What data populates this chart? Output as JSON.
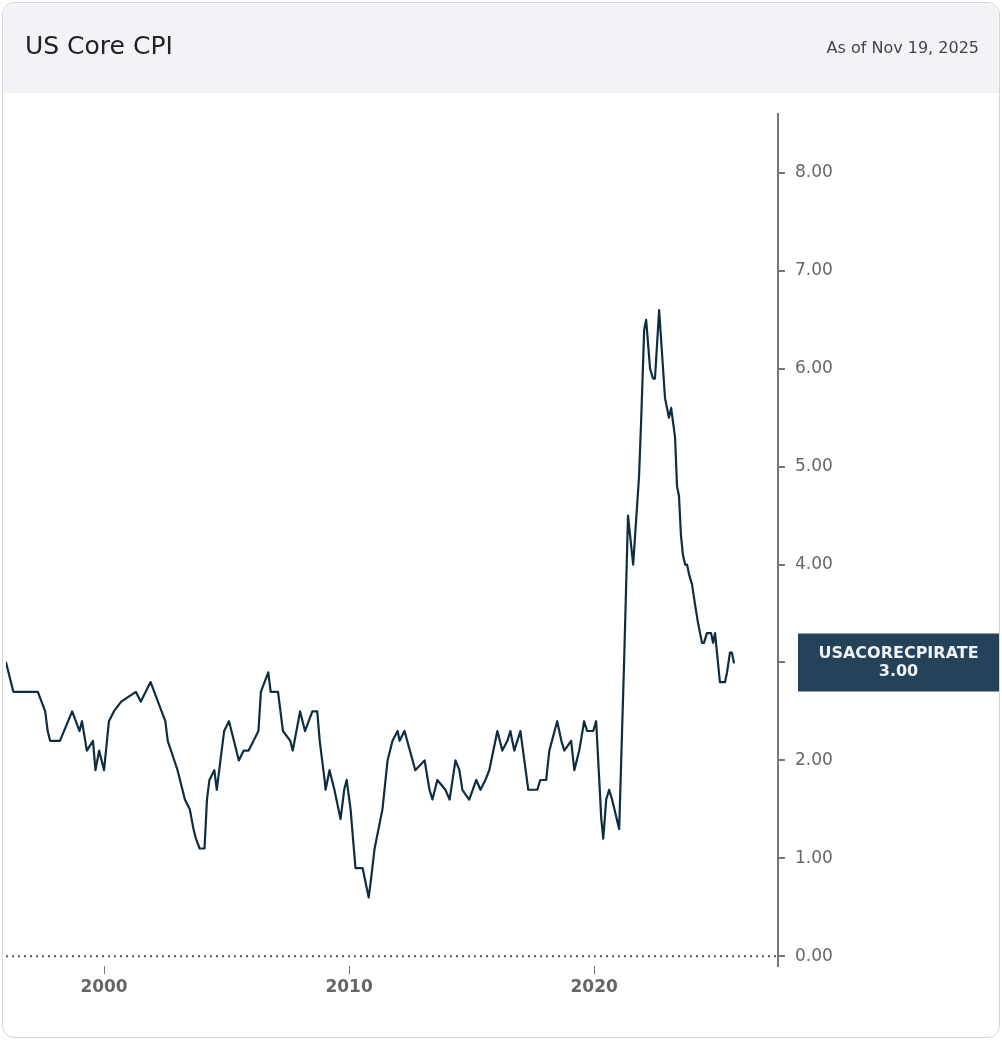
{
  "chart_data": {
    "type": "line",
    "title": "US Core CPI",
    "subtitle": "As of Nov 19, 2025",
    "series": [
      {
        "color": "#0f2d40",
        "x": [
          1996.0,
          1996.3,
          1997.3,
          1997.6,
          1997.7,
          1997.8,
          1998.2,
          1998.7,
          1999.0,
          1999.1,
          1999.3,
          1999.55,
          1999.65,
          1999.8,
          2000.0,
          2000.2,
          2000.4,
          2000.7,
          2001.3,
          2001.5,
          2001.7,
          2001.9,
          2002.2,
          2002.5,
          2002.6,
          2003.0,
          2003.3,
          2003.5,
          2003.65,
          2003.75,
          2003.9,
          2004.1,
          2004.2,
          2004.3,
          2004.5,
          2004.6,
          2004.8,
          2004.9,
          2005.1,
          2005.3,
          2005.5,
          2005.7,
          2005.9,
          2006.3,
          2006.4,
          2006.7,
          2006.8,
          2007.1,
          2007.3,
          2007.6,
          2007.7,
          2008.0,
          2008.2,
          2008.5,
          2008.7,
          2008.8,
          2009.0,
          2009.04,
          2009.2,
          2009.4,
          2009.65,
          2009.8,
          2009.9,
          2010.06,
          2010.26,
          2010.55,
          2010.8,
          2010.9,
          2011.04,
          2011.36,
          2011.57,
          2011.77,
          2011.98,
          2012.06,
          2012.26,
          2012.59,
          2012.7,
          2013.08,
          2013.28,
          2013.4,
          2013.6,
          2013.93,
          2014.1,
          2014.34,
          2014.5,
          2014.62,
          2014.9,
          2015.19,
          2015.36,
          2015.56,
          2015.72,
          2016.05,
          2016.25,
          2016.46,
          2016.58,
          2016.74,
          2016.99,
          2017.15,
          2017.31,
          2017.68,
          2017.8,
          2018.04,
          2018.17,
          2018.49,
          2018.66,
          2018.78,
          2019.06,
          2019.19,
          2019.39,
          2019.59,
          2019.71,
          2019.96,
          2020.08,
          2020.29,
          2020.37,
          2020.49,
          2020.61,
          2020.73,
          2021.02,
          2021.22,
          2021.38,
          2021.59,
          2021.75,
          2021.83,
          2021.92,
          2022.04,
          2022.12,
          2022.28,
          2022.4,
          2022.48,
          2022.65,
          2022.81,
          2022.89,
          2023.05,
          2023.14,
          2023.3,
          2023.38,
          2023.46,
          2023.54,
          2023.62,
          2023.71,
          2023.79,
          2023.87,
          2023.99,
          2024.11,
          2024.24,
          2024.32,
          2024.4,
          2024.48,
          2024.6,
          2024.77,
          2024.85,
          2024.93,
          2025.01,
          2025.13,
          2025.34,
          2025.42,
          2025.54,
          2025.62,
          2025.7
        ],
        "values": [
          3.0,
          2.7,
          2.7,
          2.5,
          2.3,
          2.2,
          2.2,
          2.5,
          2.3,
          2.4,
          2.1,
          2.2,
          1.9,
          2.1,
          1.9,
          2.4,
          2.5,
          2.6,
          2.7,
          2.6,
          2.7,
          2.8,
          2.6,
          2.4,
          2.2,
          1.9,
          1.6,
          1.5,
          1.3,
          1.2,
          1.1,
          1.1,
          1.6,
          1.8,
          1.9,
          1.7,
          2.1,
          2.3,
          2.4,
          2.2,
          2.0,
          2.1,
          2.1,
          2.3,
          2.7,
          2.9,
          2.7,
          2.7,
          2.3,
          2.2,
          2.1,
          2.5,
          2.3,
          2.5,
          2.5,
          2.2,
          1.8,
          1.7,
          1.9,
          1.7,
          1.4,
          1.7,
          1.8,
          1.5,
          0.9,
          0.9,
          0.6,
          0.8,
          1.1,
          1.5,
          2.0,
          2.2,
          2.3,
          2.2,
          2.3,
          2.0,
          1.9,
          2.0,
          1.7,
          1.6,
          1.8,
          1.7,
          1.6,
          2.0,
          1.9,
          1.7,
          1.6,
          1.8,
          1.7,
          1.8,
          1.9,
          2.3,
          2.1,
          2.2,
          2.3,
          2.1,
          2.3,
          2.0,
          1.7,
          1.7,
          1.8,
          1.8,
          2.1,
          2.4,
          2.2,
          2.1,
          2.2,
          1.9,
          2.1,
          2.4,
          2.3,
          2.3,
          2.4,
          1.4,
          1.2,
          1.6,
          1.7,
          1.6,
          1.3,
          3.0,
          4.5,
          4.0,
          4.6,
          4.9,
          5.5,
          6.4,
          6.5,
          6.0,
          5.9,
          5.9,
          6.6,
          6.0,
          5.7,
          5.5,
          5.6,
          5.3,
          4.8,
          4.7,
          4.3,
          4.1,
          4.0,
          4.0,
          3.9,
          3.8,
          3.6,
          3.4,
          3.3,
          3.2,
          3.2,
          3.3,
          3.3,
          3.2,
          3.3,
          3.1,
          2.8,
          2.8,
          2.9,
          3.1,
          3.1,
          3.0
        ]
      }
    ],
    "xlim": [
      1996,
      2027.5
    ],
    "xticks": [
      2000,
      2010,
      2020
    ],
    "ylim": [
      -0.1,
      8.6
    ],
    "yticks": [
      {
        "value": 0,
        "label": "0.00"
      },
      {
        "value": 1,
        "label": "1.00"
      },
      {
        "value": 2,
        "label": "2.00"
      },
      {
        "value": 3,
        "label": null
      },
      {
        "value": 4,
        "label": "4.00"
      },
      {
        "value": 5,
        "label": "5.00"
      },
      {
        "value": 6,
        "label": "6.00"
      },
      {
        "value": 7,
        "label": "7.00"
      },
      {
        "value": 8,
        "label": "8.00"
      }
    ],
    "ref_lines": [
      {
        "axis": "y",
        "value": 0,
        "line_style": "dotted",
        "color": "#555555"
      }
    ],
    "annotations": [
      "USACORECPIRATE 3.00"
    ]
  }
}
